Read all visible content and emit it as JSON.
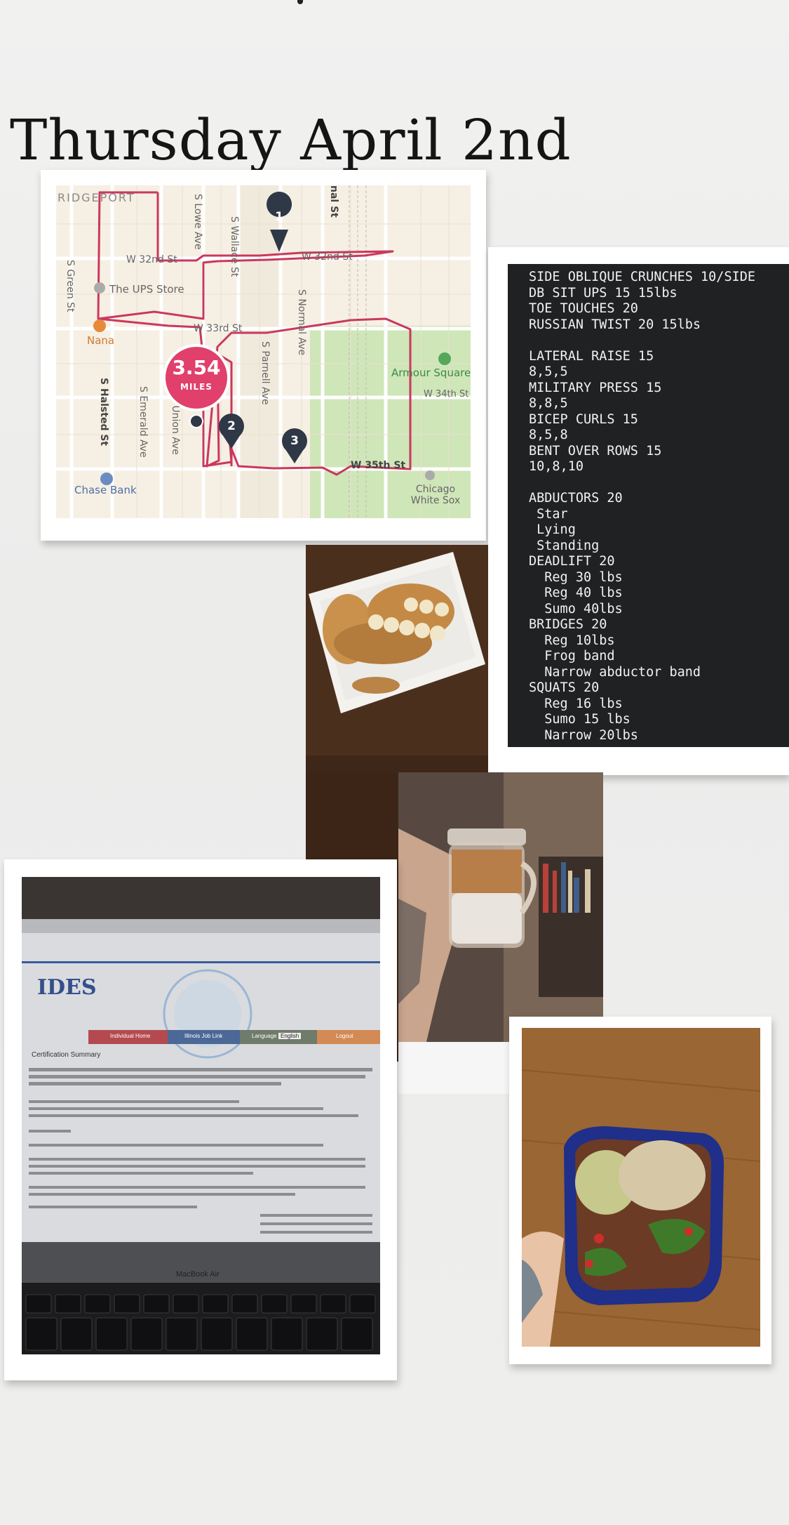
{
  "header": {
    "title": "Thursday April 2nd"
  },
  "map": {
    "distance_value": "3.54",
    "distance_unit": "MILES",
    "markers": [
      "1",
      "2",
      "3"
    ],
    "labels": {
      "neighborhood": "RIDGEPORT",
      "w32": "W 32nd St",
      "w32b": "W 32nd St",
      "w33": "W 33rd St",
      "w34": "W 34th St",
      "w35": "W 35th St",
      "ups": "The UPS Store",
      "nana": "Nana",
      "armour": "Armour Square",
      "chase": "Chase Bank",
      "sox": "Chicago White Sox",
      "lowe": "S Lowe Ave",
      "wallace": "S Wallace St",
      "normal": "S Normal Ave",
      "parnell": "S Parnell Ave",
      "green": "S Green St",
      "halsted": "S Halsted St",
      "emerald": "S Emerald Ave",
      "union": "S Union Ave",
      "canal": "nal St"
    },
    "colors": {
      "route": "#c9385f",
      "badge": "#e0406b",
      "marker": "#2f3846",
      "park": "#cfe6b8"
    }
  },
  "notes": {
    "lines": [
      "SIDE OBLIQUE CRUNCHES 10/SIDE",
      "DB SIT UPS 15 15lbs",
      "TOE TOUCHES 20",
      "RUSSIAN TWIST 20 15lbs",
      "",
      "LATERAL RAISE 15",
      "8,5,5",
      "MILITARY PRESS 15",
      "8,8,5",
      "BICEP CURLS 15",
      "8,5,8",
      "BENT OVER ROWS 15",
      "10,8,10",
      "",
      "ABDUCTORS 20",
      " Star",
      " Lying",
      " Standing",
      "DEADLIFT 20",
      "  Reg 30 lbs",
      "  Reg 40 lbs",
      "  Sumo 40lbs",
      "BRIDGES 20",
      "  Reg 10lbs",
      "  Frog band",
      "  Narrow abductor band",
      "SQUATS 20",
      "  Reg 16 lbs",
      "  Sumo 15 lbs",
      "  Narrow 20lbs"
    ]
  },
  "laptop_screen": {
    "agency": "IDES",
    "heading": "Certification Summary",
    "nav": [
      "Individual Home",
      "Illinois Job Link",
      "Language",
      "English",
      "Logout"
    ],
    "keyboard_label": "MacBook Air"
  }
}
